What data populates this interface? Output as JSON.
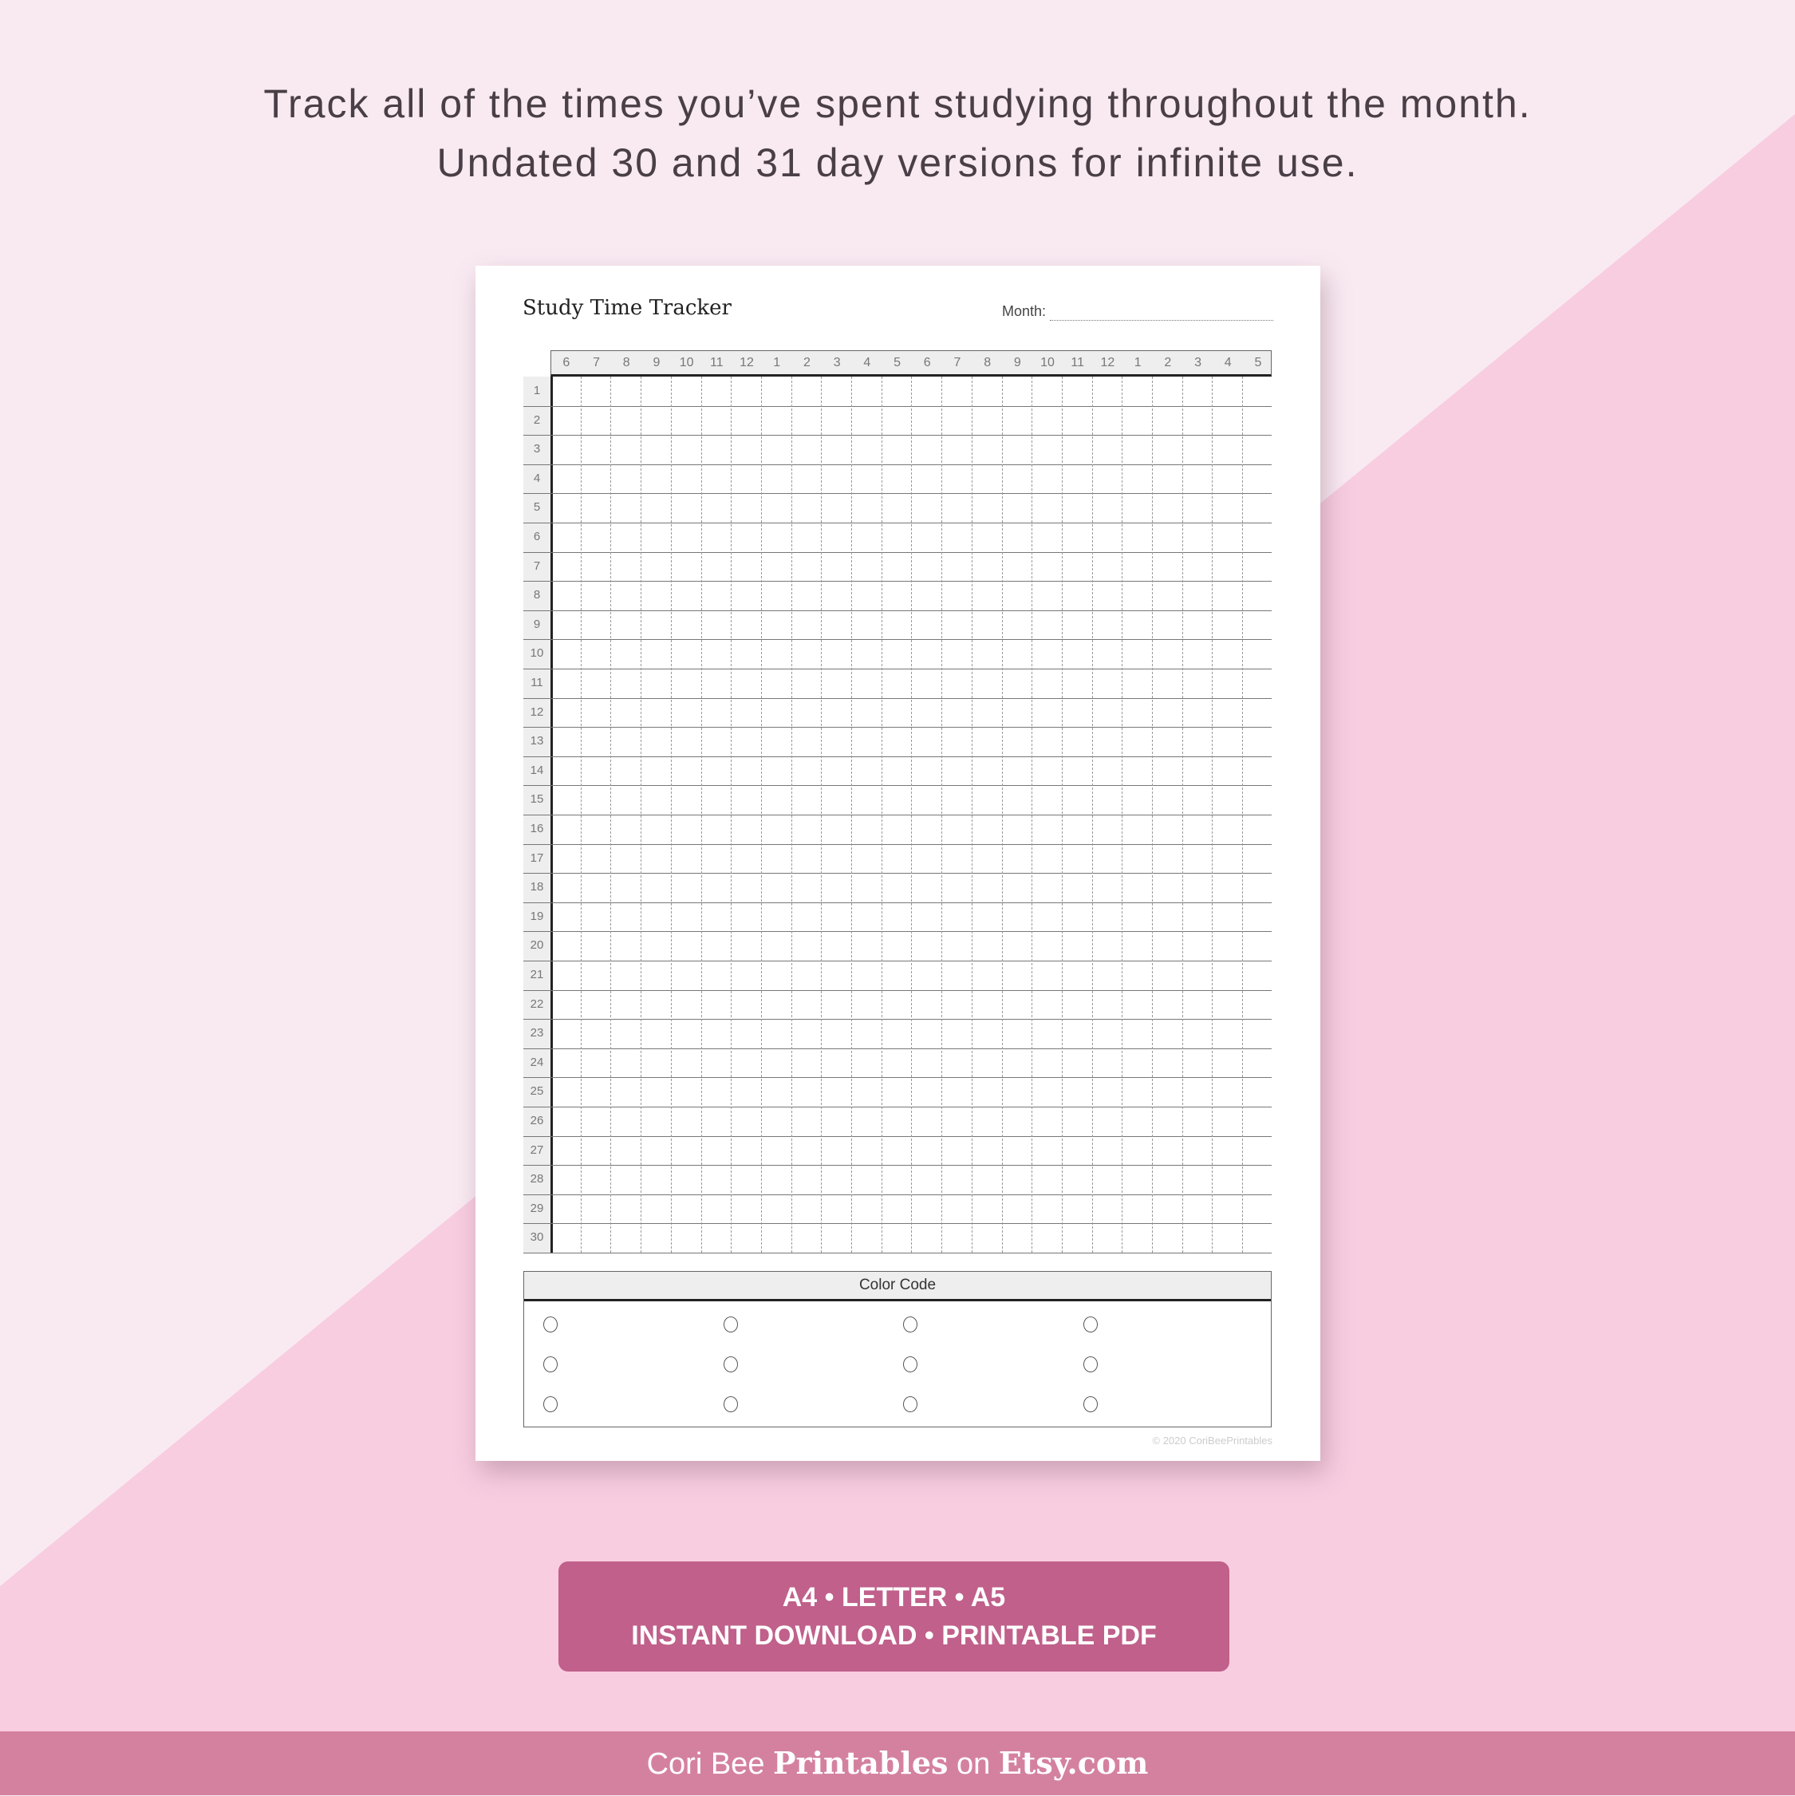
{
  "headline": [
    "Track all of the times you’ve spent studying throughout the month.",
    "Undated 30 and 31 day versions for infinite use."
  ],
  "sheet": {
    "title": "Study Time Tracker",
    "month_label": "Month:",
    "hours": [
      "6",
      "7",
      "8",
      "9",
      "10",
      "11",
      "12",
      "1",
      "2",
      "3",
      "4",
      "5",
      "6",
      "7",
      "8",
      "9",
      "10",
      "11",
      "12",
      "1",
      "2",
      "3",
      "4",
      "5"
    ],
    "days": [
      "1",
      "2",
      "3",
      "4",
      "5",
      "6",
      "7",
      "8",
      "9",
      "10",
      "11",
      "12",
      "13",
      "14",
      "15",
      "16",
      "17",
      "18",
      "19",
      "20",
      "21",
      "22",
      "23",
      "24",
      "25",
      "26",
      "27",
      "28",
      "29",
      "30"
    ],
    "color_code_label": "Color Code",
    "color_code_slots": 12,
    "copyright": "© 2020 CoriBeePrintables"
  },
  "badge": {
    "line1": "A4 • LETTER • A5",
    "line2": "INSTANT DOWNLOAD • PRINTABLE PDF"
  },
  "footer": {
    "part1": "Cori Bee ",
    "part2": "Printables",
    "part3": " on ",
    "part4": "Etsy.com"
  },
  "colors": {
    "background": "#f9eaf2",
    "diagonal": "#f8cde0",
    "badge": "#c0608b",
    "footer": "#d4819f"
  }
}
